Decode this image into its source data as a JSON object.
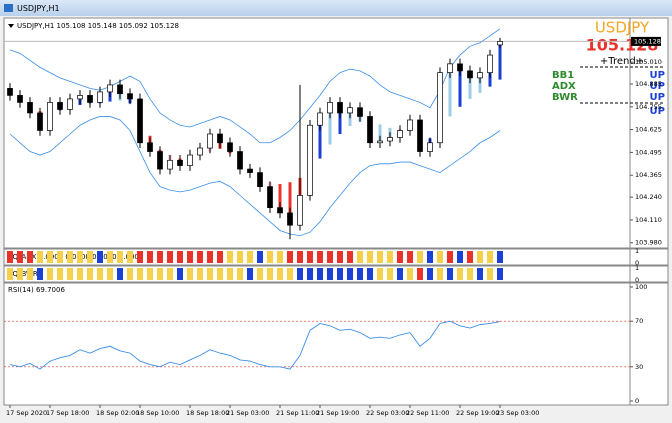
{
  "window": {
    "title": "USDJPY,H1"
  },
  "signal_panel": {
    "symbol": "USDJPY",
    "price": "105.128",
    "trend": "+Trend+",
    "rows": [
      {
        "name": "BB1",
        "signal": "UP"
      },
      {
        "name": "ADX",
        "signal": "UP"
      },
      {
        "name": "BWR",
        "signal": "UP"
      },
      {
        "signal": "UP"
      }
    ]
  },
  "chart_data": [
    {
      "type": "candlestick",
      "header": "USDJPY,H1  105.108 105.148 105.092 105.128",
      "categories": [
        "17 Sep 2020",
        null,
        null,
        null,
        "17 Sep 18:00",
        null,
        null,
        null,
        null,
        "18 Sep 02:00",
        null,
        null,
        null,
        "18 Sep 10:00",
        null,
        null,
        null,
        null,
        "18 Sep 18:00",
        null,
        null,
        null,
        "21 Sep 03:00",
        null,
        null,
        null,
        null,
        "21 Sep 11:00",
        null,
        null,
        null,
        "21 Sep 19:00",
        null,
        null,
        null,
        null,
        "22 Sep 03:00",
        null,
        null,
        null,
        "22 Sep 11:00",
        null,
        null,
        null,
        null,
        "22 Sep 19:00",
        null,
        null,
        null,
        "23 Sep 03:00"
      ],
      "open": [
        104.86,
        104.82,
        104.78,
        104.72,
        104.62,
        104.78,
        104.74,
        104.8,
        104.82,
        104.78,
        104.84,
        104.88,
        104.83,
        104.8,
        104.55,
        104.5,
        104.4,
        104.45,
        104.42,
        104.48,
        104.52,
        104.6,
        104.55,
        104.5,
        104.4,
        104.38,
        104.3,
        104.18,
        104.15,
        104.08,
        104.25,
        104.65,
        104.72,
        104.78,
        104.72,
        104.75,
        104.7,
        104.55,
        104.56,
        104.58,
        104.62,
        104.68,
        104.5,
        104.55,
        104.95,
        105.0,
        104.96,
        104.92,
        104.95,
        105.108
      ],
      "high": [
        104.89,
        104.85,
        104.81,
        104.75,
        104.81,
        104.81,
        104.83,
        104.85,
        104.85,
        104.87,
        104.91,
        104.91,
        104.86,
        104.83,
        104.58,
        104.53,
        104.48,
        104.48,
        104.51,
        104.55,
        104.63,
        104.63,
        104.58,
        104.53,
        104.43,
        104.41,
        104.33,
        104.21,
        104.18,
        104.88,
        104.68,
        104.75,
        104.81,
        104.81,
        104.78,
        104.78,
        104.73,
        104.59,
        104.61,
        104.65,
        104.71,
        104.71,
        104.58,
        104.98,
        105.03,
        105.03,
        104.99,
        104.98,
        105.08,
        105.148
      ],
      "low": [
        104.79,
        104.75,
        104.69,
        104.59,
        104.59,
        104.71,
        104.71,
        104.77,
        104.75,
        104.75,
        104.81,
        104.8,
        104.77,
        104.52,
        104.47,
        104.37,
        104.37,
        104.39,
        104.39,
        104.45,
        104.49,
        104.52,
        104.47,
        104.37,
        104.35,
        104.27,
        104.15,
        104.12,
        104.0,
        104.05,
        104.22,
        104.62,
        104.69,
        104.69,
        104.69,
        104.67,
        104.52,
        104.52,
        104.53,
        104.55,
        104.59,
        104.47,
        104.47,
        104.52,
        104.92,
        104.93,
        104.89,
        104.89,
        104.92,
        105.092
      ],
      "close": [
        104.82,
        104.78,
        104.72,
        104.62,
        104.78,
        104.74,
        104.8,
        104.82,
        104.78,
        104.84,
        104.88,
        104.83,
        104.8,
        104.55,
        104.5,
        104.4,
        104.45,
        104.42,
        104.48,
        104.52,
        104.6,
        104.55,
        104.5,
        104.4,
        104.38,
        104.3,
        104.18,
        104.15,
        104.08,
        104.25,
        104.65,
        104.72,
        104.78,
        104.72,
        104.75,
        104.7,
        104.55,
        104.56,
        104.58,
        104.62,
        104.68,
        104.5,
        104.55,
        104.95,
        105.0,
        104.96,
        104.92,
        104.95,
        105.05,
        105.128
      ],
      "upper_band": [
        105.08,
        105.06,
        105.02,
        104.98,
        104.95,
        104.92,
        104.9,
        104.88,
        104.86,
        104.85,
        104.87,
        104.9,
        104.93,
        104.9,
        104.8,
        104.72,
        104.68,
        104.65,
        104.64,
        104.66,
        104.68,
        104.7,
        104.68,
        104.64,
        104.6,
        104.55,
        104.55,
        104.58,
        104.62,
        104.68,
        104.75,
        104.82,
        104.9,
        104.95,
        104.97,
        104.96,
        104.93,
        104.88,
        104.84,
        104.82,
        104.8,
        104.78,
        104.75,
        104.85,
        104.98,
        105.05,
        105.1,
        105.12,
        105.16,
        105.2
      ],
      "lower_band": [
        104.6,
        104.55,
        104.5,
        104.48,
        104.5,
        104.55,
        104.6,
        104.65,
        104.68,
        104.7,
        104.7,
        104.68,
        104.62,
        104.5,
        104.38,
        104.3,
        104.28,
        104.27,
        104.28,
        104.3,
        104.32,
        104.33,
        104.3,
        104.25,
        104.2,
        104.15,
        104.1,
        104.05,
        104.03,
        104.02,
        104.04,
        104.1,
        104.18,
        104.25,
        104.32,
        104.38,
        104.42,
        104.43,
        104.43,
        104.44,
        104.44,
        104.42,
        104.4,
        104.38,
        104.42,
        104.46,
        104.5,
        104.55,
        104.58,
        104.62
      ],
      "trend_colors": "RRPRBBLBLBBLBRRRPRRRPRRRRRPRRRBBLBLLBLLPPPBLLBLLBB",
      "palette": {
        "R": "#e8332a",
        "Y": "#f5d04a",
        "B": "#1c3fd6",
        "P": "#f2b8c4",
        "L": "#9dcbe8"
      },
      "band_color": "#3a8ee6",
      "last_price": 105.128,
      "ylim": [
        103.95,
        105.25
      ],
      "yticks": [
        {
          "value": 103.98,
          "label": "103.980"
        },
        {
          "value": 104.11,
          "label": "104.110"
        },
        {
          "value": 104.24,
          "label": "104.240"
        },
        104.365,
        104.495,
        104.625,
        104.755,
        104.885,
        {
          "value": 105.01,
          "label": "105.010"
        }
      ]
    },
    {
      "type": "strip",
      "label": "SQ_ADX 1.0000 0.0000 0.0000 1.0000",
      "values": [
        1,
        1,
        1,
        1,
        1,
        1,
        1,
        1,
        1,
        1,
        1,
        1,
        1,
        1,
        1,
        1,
        1,
        1,
        1,
        1,
        1,
        1,
        1,
        1,
        1,
        1,
        1,
        1,
        1,
        1,
        1,
        1,
        1,
        1,
        1,
        1,
        1,
        1,
        1,
        1,
        1,
        1,
        1,
        1,
        1,
        1,
        1,
        1,
        1,
        1
      ],
      "colors": "RRRYYYYYYBYYYRRRRRRRRRYYYBYYRRRRRRRYYYYRRYBYRBRYYB",
      "ylim": [
        0,
        1
      ],
      "yticks": [
        0,
        1
      ]
    },
    {
      "type": "strip",
      "label": "SQ_BWR",
      "values": [
        1,
        1,
        1,
        1,
        1,
        1,
        1,
        1,
        1,
        1,
        1,
        1,
        1,
        1,
        1,
        1,
        1,
        1,
        1,
        1,
        1,
        1,
        1,
        1,
        1,
        1,
        1,
        1,
        1,
        1,
        1,
        1,
        1,
        1,
        1,
        1,
        1,
        1,
        1,
        1,
        1,
        1,
        1,
        1,
        1,
        1,
        1,
        1,
        1,
        1
      ],
      "colors": "YYYBYYYYYYYBYYYYYBYYYYYYBYYYYBBBBBBBBYYBYRBYBYYBYB",
      "ylim": [
        0,
        1
      ],
      "yticks": [
        0,
        1
      ]
    },
    {
      "type": "line",
      "label": "RSI(14) 69.7006",
      "color": "#3a8ee6",
      "values": [
        32,
        30,
        33,
        28,
        35,
        38,
        40,
        45,
        42,
        46,
        48,
        44,
        42,
        35,
        32,
        30,
        34,
        32,
        36,
        40,
        45,
        42,
        40,
        36,
        35,
        32,
        30,
        30,
        28,
        40,
        62,
        68,
        66,
        62,
        63,
        60,
        55,
        56,
        55,
        58,
        60,
        48,
        55,
        68,
        70,
        66,
        64,
        67,
        68,
        69.7006
      ],
      "levels": [
        30,
        70
      ],
      "level_color": "#e8332a",
      "ylim": [
        0,
        100
      ],
      "yticks": [
        0,
        30,
        70,
        100
      ]
    }
  ]
}
